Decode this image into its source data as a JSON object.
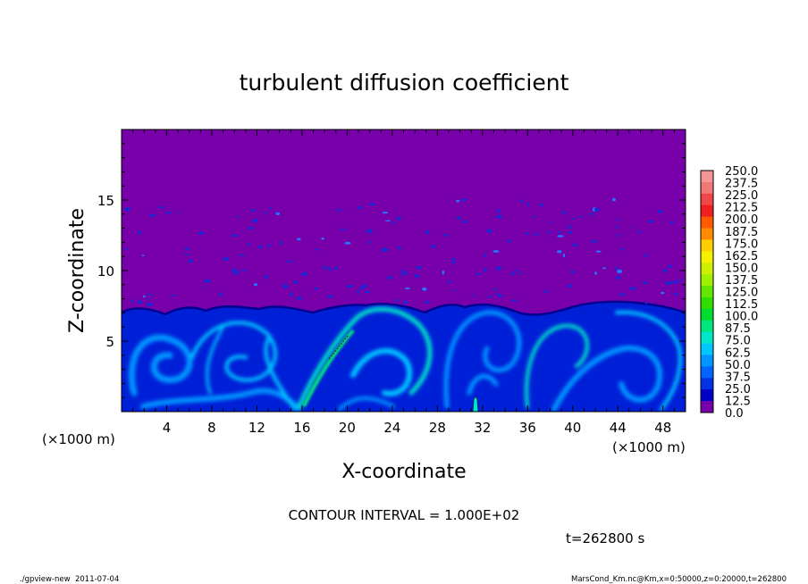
{
  "chart_data": {
    "type": "heatmap",
    "title": "turbulent diffusion coefficient",
    "xlabel": "X-coordinate",
    "ylabel": "Z-coordinate",
    "x_unit": "(×1000 m)",
    "y_unit": "(×1000 m)",
    "xlim": [
      0,
      50
    ],
    "ylim": [
      0,
      20
    ],
    "x_ticks": [
      4,
      8,
      12,
      16,
      20,
      24,
      28,
      32,
      36,
      40,
      44,
      48
    ],
    "y_ticks": [
      5,
      10,
      15
    ],
    "colorbar_levels": [
      "250.0",
      "237.5",
      "225.0",
      "212.5",
      "200.0",
      "187.5",
      "175.0",
      "162.5",
      "150.0",
      "137.5",
      "125.0",
      "112.5",
      "100.0",
      "87.5",
      "75.0",
      "62.5",
      "50.0",
      "37.5",
      "25.0",
      "12.5",
      "0.0"
    ],
    "colorbar_colors": [
      "#f49696",
      "#f07878",
      "#f04646",
      "#f01e1e",
      "#ff5a00",
      "#ff8c00",
      "#ffcd00",
      "#f5f000",
      "#cdf000",
      "#a0f000",
      "#64e600",
      "#32dc00",
      "#00dc32",
      "#00e67d",
      "#00e6c8",
      "#00c8ff",
      "#0096ff",
      "#0064ff",
      "#0032e6",
      "#0000c8",
      "#7700aa"
    ],
    "contour_interval": "CONTOUR INTERVAL = 1.000E+02",
    "time_label": "t=262800 s",
    "footer_left": "./gpview-new  2011-07-04",
    "footer_right": "MarsCond_Km.nc@Km,x=0:50000,z=0:20000,t=262800"
  }
}
